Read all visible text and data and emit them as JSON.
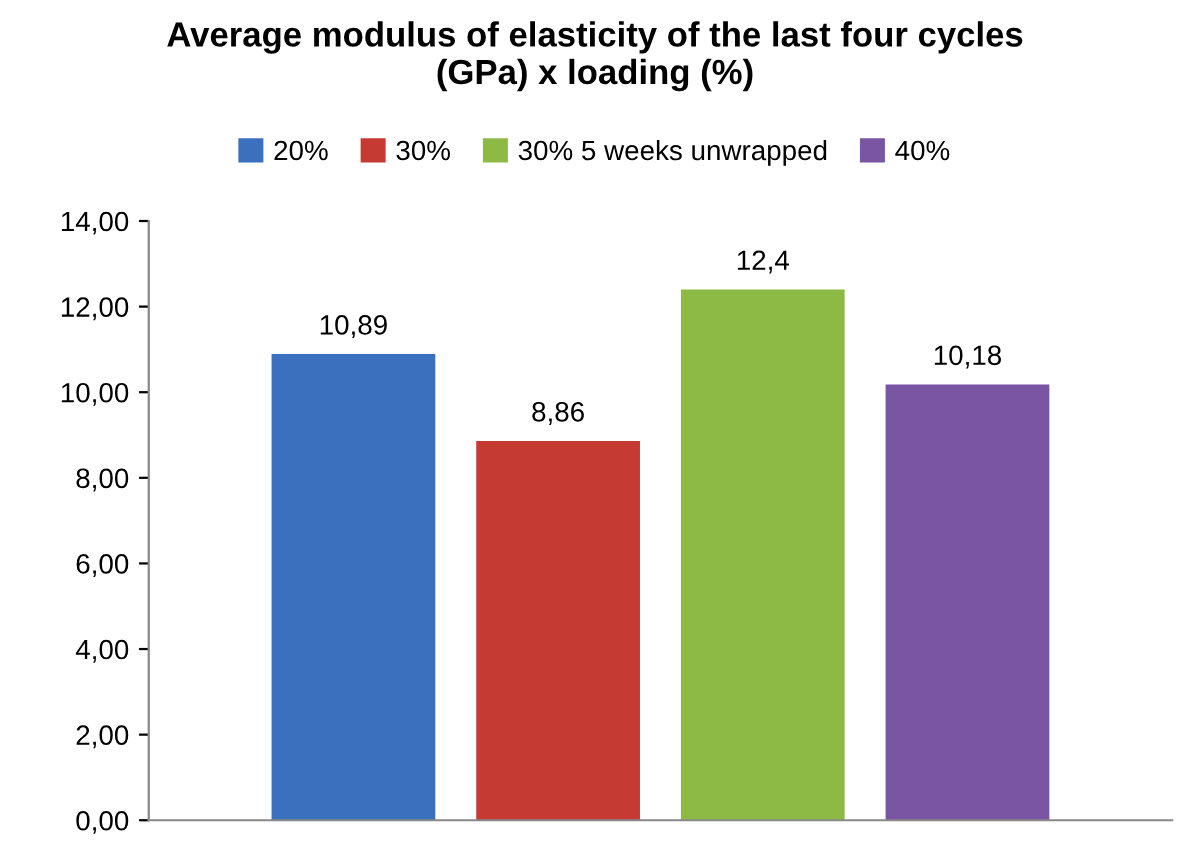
{
  "chart_data": {
    "type": "bar",
    "title": "Average modulus of elasticity of the last four cycles\n(GPa) x loading (%)",
    "categories": [
      null
    ],
    "series": [
      {
        "name": "20%",
        "color": "#3b70bf",
        "values": [
          10.89
        ],
        "value_labels": [
          "10,89"
        ]
      },
      {
        "name": "30%",
        "color": "#c63a34",
        "values": [
          8.86
        ],
        "value_labels": [
          "8,86"
        ]
      },
      {
        "name": "30% 5 weeks unwrapped",
        "color": "#8dba45",
        "values": [
          12.4
        ],
        "value_labels": [
          "12,4"
        ]
      },
      {
        "name": "40%",
        "color": "#7a55a3",
        "values": [
          10.18
        ],
        "value_labels": [
          "10,18"
        ]
      }
    ],
    "ylim": [
      0,
      14
    ],
    "yticks": [
      {
        "value": 0,
        "label": "0,00"
      },
      {
        "value": 2,
        "label": "2,00"
      },
      {
        "value": 4,
        "label": "4,00"
      },
      {
        "value": 6,
        "label": "6,00"
      },
      {
        "value": 8,
        "label": "8,00"
      },
      {
        "value": 10,
        "label": "10,00"
      },
      {
        "value": 12,
        "label": "12,00"
      },
      {
        "value": 14,
        "label": "14,00"
      }
    ],
    "grid": false,
    "legend": "top"
  }
}
